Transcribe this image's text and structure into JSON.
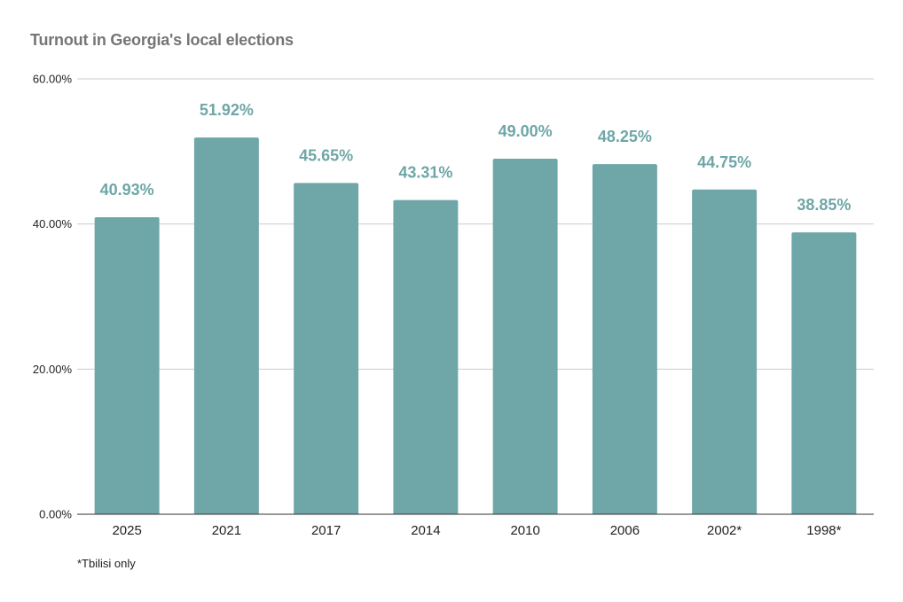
{
  "chart_data": {
    "type": "bar",
    "title": "Turnout in Georgia's local elections",
    "xlabel": "",
    "ylabel": "",
    "categories": [
      "2025",
      "2021",
      "2017",
      "2014",
      "2010",
      "2006",
      "2002*",
      "1998*"
    ],
    "values": [
      40.93,
      51.92,
      45.65,
      43.31,
      49.0,
      48.25,
      44.75,
      38.85
    ],
    "data_labels": [
      "40.93%",
      "51.92%",
      "45.65%",
      "43.31%",
      "49.00%",
      "48.25%",
      "44.75%",
      "38.85%"
    ],
    "ylim": [
      0,
      60
    ],
    "yticks": [
      0,
      20,
      40,
      60
    ],
    "ytick_labels": [
      "0.00%",
      "20.00%",
      "40.00%",
      "60.00%"
    ],
    "grid": true,
    "legend": "none",
    "footnote": "*Tbilisi only",
    "colors": {
      "bar": "#6fa6a7",
      "data_label": "#6fa6a7",
      "grid": "#cccccc",
      "axis": "#333333",
      "title": "#757575"
    }
  }
}
